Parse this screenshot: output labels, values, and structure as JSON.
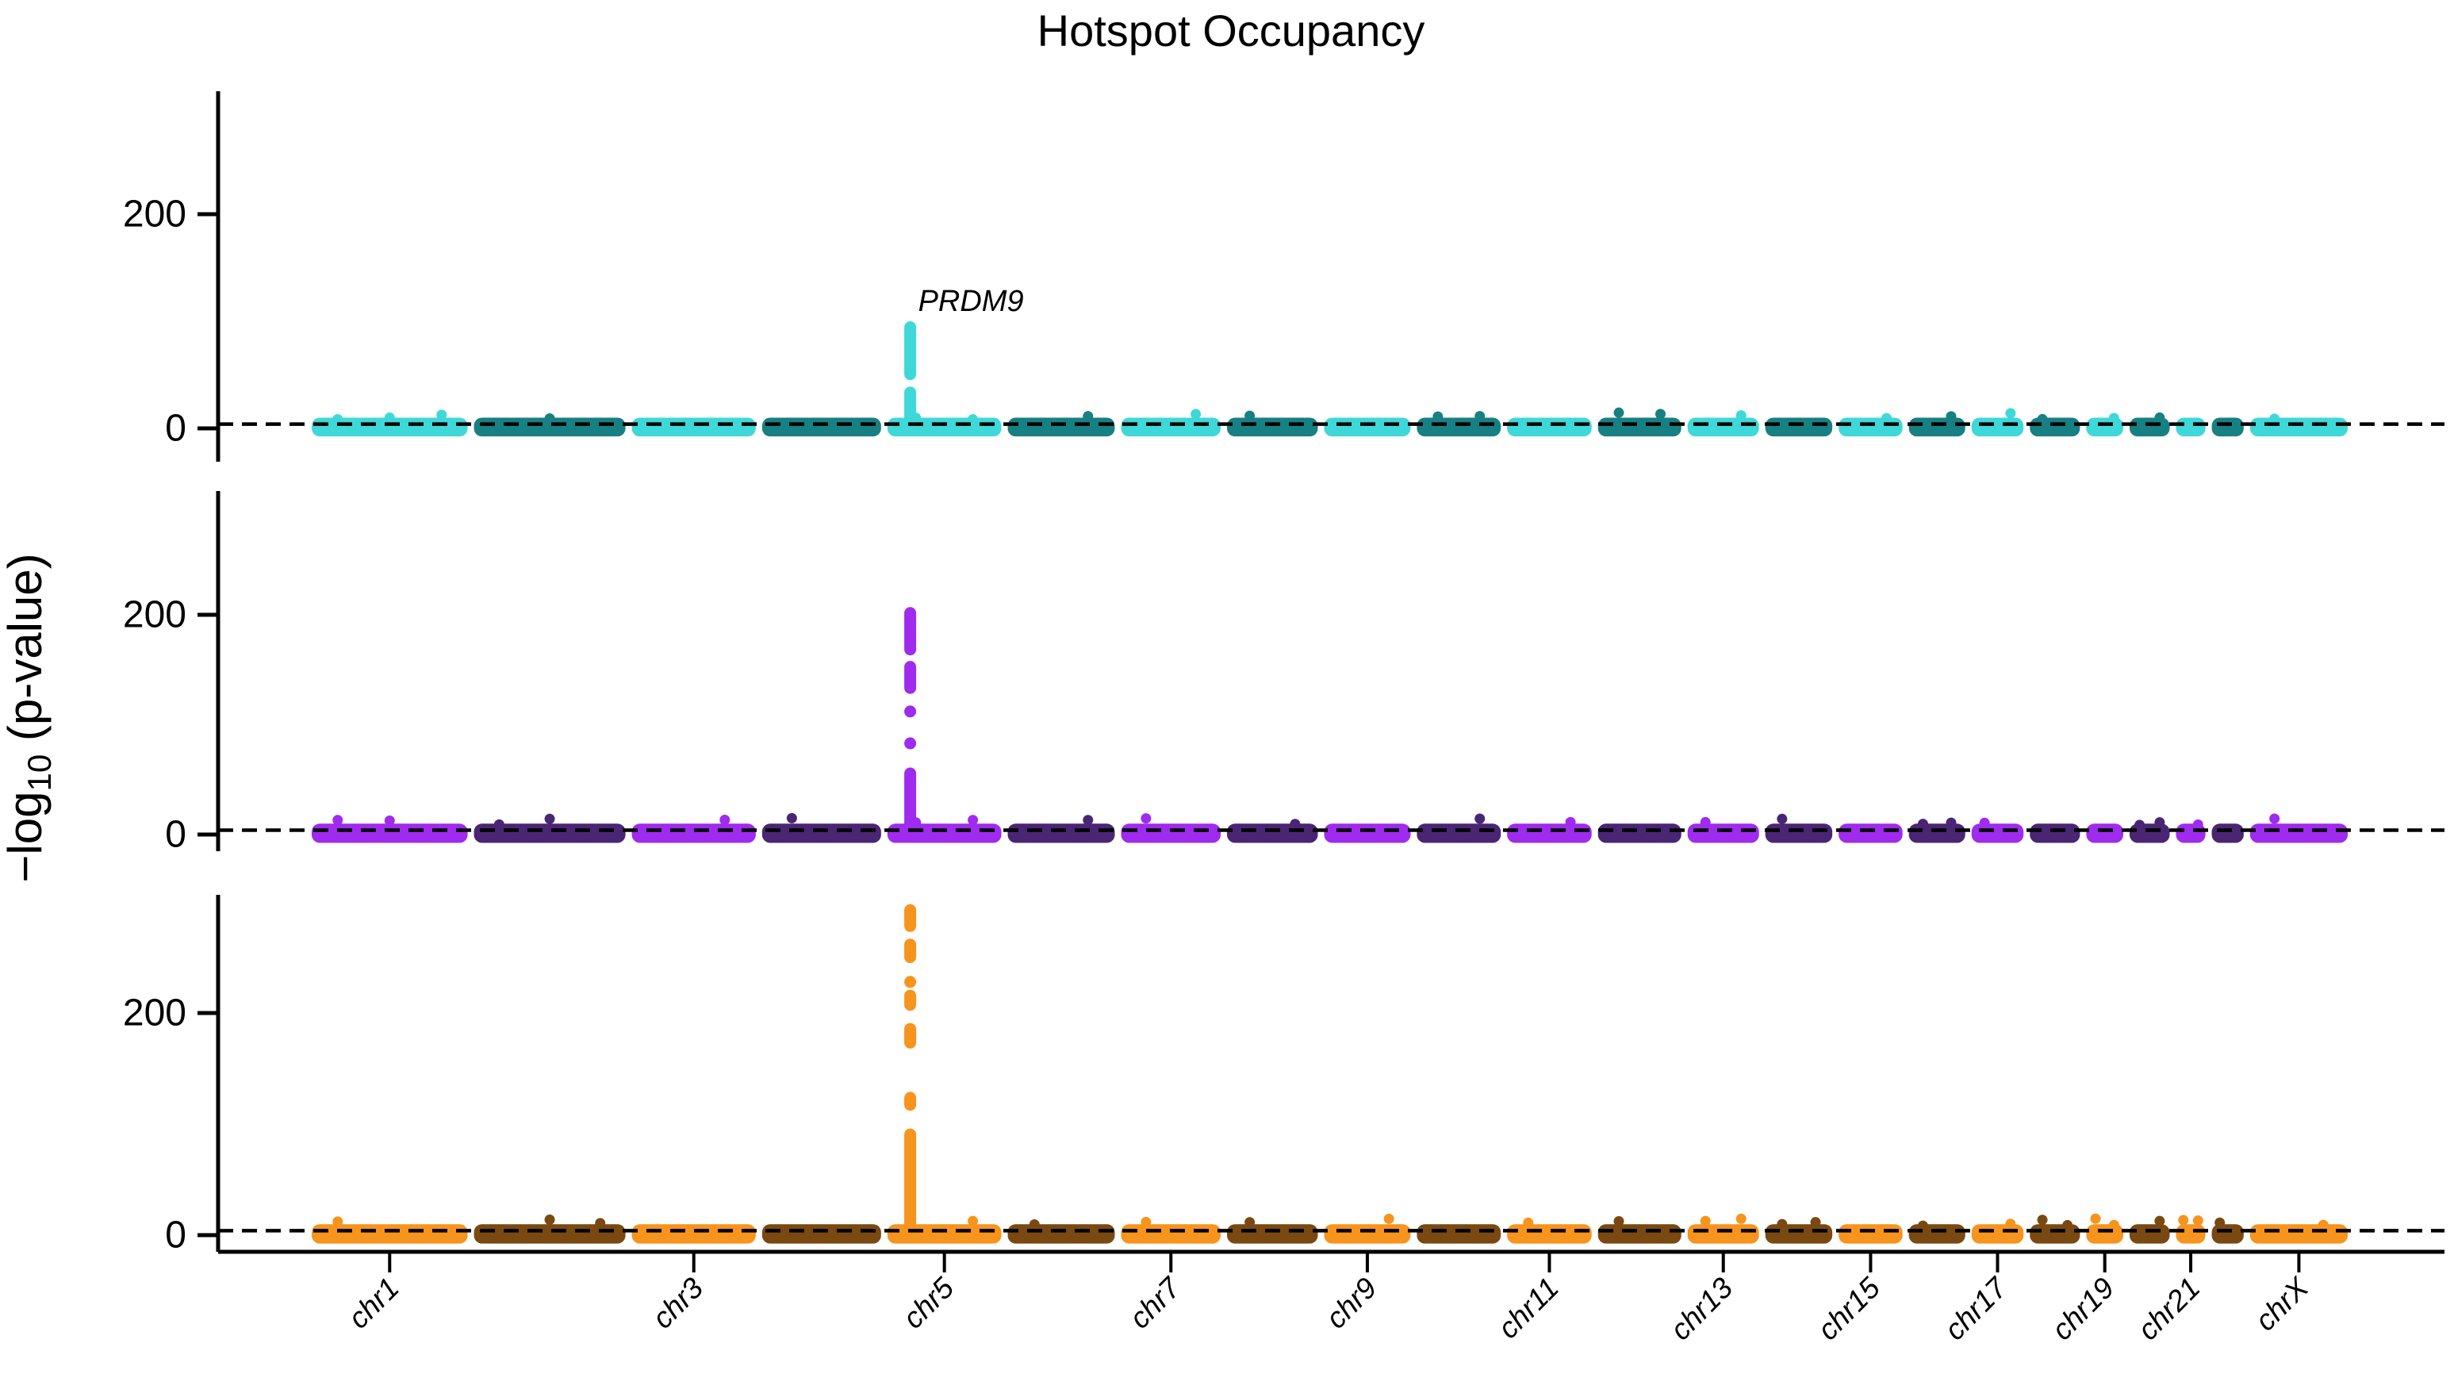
{
  "title": "Hotspot Occupancy",
  "y_axis": {
    "label_prefix": "−log",
    "label_sub": "10",
    "label_suffix": " (p-value)",
    "tick_labels": [
      "0",
      "200"
    ]
  },
  "annotation": {
    "gene": "PRDM9"
  },
  "chart_data": {
    "type": "scatter",
    "variant": "manhattan-multipanel",
    "title": "Hotspot Occupancy",
    "ylabel": "-log10 (p-value)",
    "grid": false,
    "legend": "none",
    "x_axis_description": "genomic position, chromosomes chr1-chrX, alternating colors per chromosome",
    "x_tick_labels": [
      "chr1",
      "chr3",
      "chr5",
      "chr7",
      "chr9",
      "chr11",
      "chr13",
      "chr15",
      "chr17",
      "chr19",
      "chr21",
      "chrX"
    ],
    "threshold_line": {
      "style": "dashed",
      "color": "#000000",
      "y_value": 4
    },
    "chromosomes": [
      {
        "name": "chr1",
        "size_mb": 249,
        "labeled": true
      },
      {
        "name": "chr2",
        "size_mb": 242,
        "labeled": false
      },
      {
        "name": "chr3",
        "size_mb": 198,
        "labeled": true
      },
      {
        "name": "chr4",
        "size_mb": 190,
        "labeled": false
      },
      {
        "name": "chr5",
        "size_mb": 182,
        "labeled": true
      },
      {
        "name": "chr6",
        "size_mb": 171,
        "labeled": false
      },
      {
        "name": "chr7",
        "size_mb": 159,
        "labeled": true
      },
      {
        "name": "chr8",
        "size_mb": 145,
        "labeled": false
      },
      {
        "name": "chr9",
        "size_mb": 138,
        "labeled": true
      },
      {
        "name": "chr10",
        "size_mb": 134,
        "labeled": false
      },
      {
        "name": "chr11",
        "size_mb": 135,
        "labeled": true
      },
      {
        "name": "chr12",
        "size_mb": 133,
        "labeled": false
      },
      {
        "name": "chr13",
        "size_mb": 114,
        "labeled": true
      },
      {
        "name": "chr14",
        "size_mb": 107,
        "labeled": false
      },
      {
        "name": "chr15",
        "size_mb": 102,
        "labeled": true
      },
      {
        "name": "chr16",
        "size_mb": 90,
        "labeled": false
      },
      {
        "name": "chr17",
        "size_mb": 83,
        "labeled": true
      },
      {
        "name": "chr18",
        "size_mb": 80,
        "labeled": false
      },
      {
        "name": "chr19",
        "size_mb": 59,
        "labeled": true
      },
      {
        "name": "chr20",
        "size_mb": 64,
        "labeled": false
      },
      {
        "name": "chr21",
        "size_mb": 47,
        "labeled": true
      },
      {
        "name": "chr22",
        "size_mb": 51,
        "labeled": false
      },
      {
        "name": "chrX",
        "size_mb": 156,
        "labeled": true
      }
    ],
    "panels": [
      {
        "row": 1,
        "color_odd_chrom": "#3FD8D8",
        "color_even_chrom": "#178083",
        "yticks": [
          0,
          200
        ],
        "ylim": [
          0,
          315
        ],
        "baseline_band": [
          -9,
          7
        ],
        "peak": {
          "chrom": "chr5",
          "chrom_frac": 0.2,
          "label": "PRDM9",
          "max_value": 100,
          "segments": [
            [
              0,
              39
            ],
            [
              45,
              100
            ]
          ],
          "dots": []
        }
      },
      {
        "row": 2,
        "color_odd_chrom": "#9F2BEE",
        "color_even_chrom": "#4A2573",
        "yticks": [
          0,
          200
        ],
        "ylim": [
          0,
          312
        ],
        "baseline_band": [
          -9,
          7
        ],
        "peak": {
          "chrom": "chr5",
          "chrom_frac": 0.2,
          "label": null,
          "max_value": 207,
          "segments": [
            [
              0,
              61
            ],
            [
              128,
              158
            ],
            [
              163,
              207
            ]
          ],
          "dots": [
            83,
            112
          ]
        }
      },
      {
        "row": 3,
        "color_odd_chrom": "#F7941D",
        "color_even_chrom": "#7A4911",
        "yticks": [
          0,
          200
        ],
        "ylim": [
          0,
          306
        ],
        "baseline_band": [
          -9,
          7
        ],
        "peak": {
          "chrom": "chr5",
          "chrom_frac": 0.2,
          "label": null,
          "max_value": 298,
          "segments": [
            [
              0,
              96
            ],
            [
              112,
              129
            ],
            [
              168,
              191
            ],
            [
              202,
              221
            ],
            [
              245,
              267
            ],
            [
              273,
              298
            ]
          ],
          "dots": [
            228
          ]
        }
      }
    ]
  }
}
